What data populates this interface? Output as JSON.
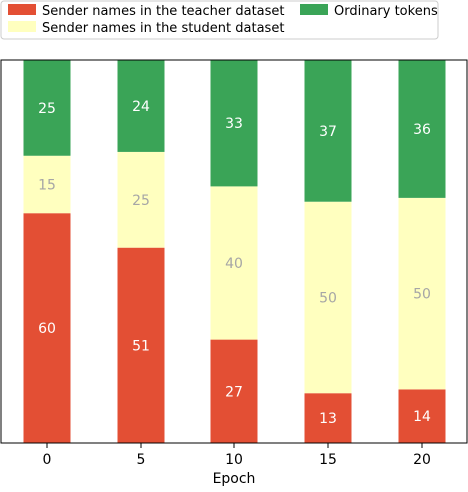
{
  "chart_data": {
    "type": "bar",
    "stacked": true,
    "categories": [
      "0",
      "5",
      "10",
      "15",
      "20"
    ],
    "series": [
      {
        "name": "Sender names in the teacher dataset",
        "color": "#e34f34",
        "label_color": "#ffffff",
        "values": [
          60,
          51,
          27,
          13,
          14
        ]
      },
      {
        "name": "Sender names in the student dataset",
        "color": "#ffffbf",
        "label_color": "#a6a6a6",
        "values": [
          15,
          25,
          40,
          50,
          50
        ]
      },
      {
        "name": "Ordinary tokens",
        "color": "#3aa457",
        "label_color": "#ffffff",
        "values": [
          25,
          24,
          33,
          37,
          36
        ]
      }
    ],
    "xlabel": "Epoch",
    "ylabel": "",
    "ylim": [
      0,
      100
    ],
    "legend_position": "top",
    "grid": false
  }
}
